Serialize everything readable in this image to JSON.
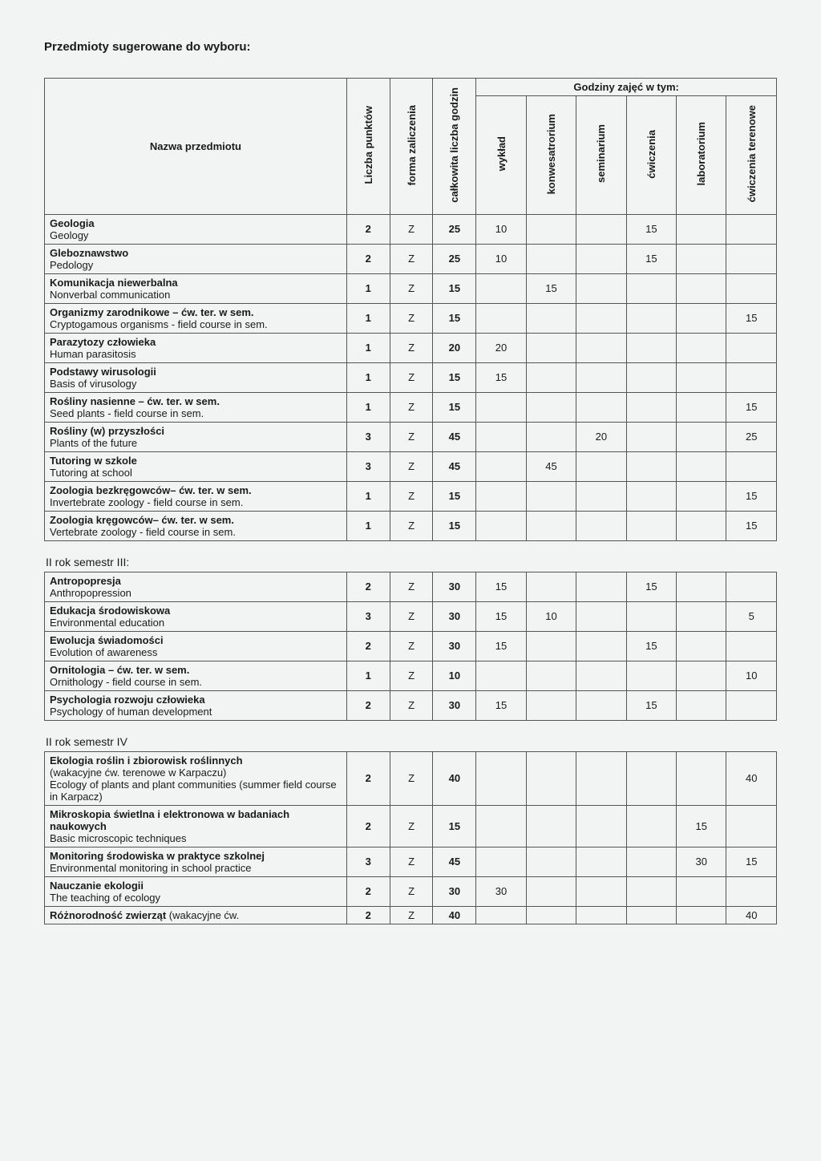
{
  "title": "Przedmioty sugerowane do wyboru:",
  "headers": {
    "name": "Nazwa przedmiotu",
    "points": "Liczba punktów",
    "form": "forma zaliczenia",
    "total": "całkowita liczba godzin",
    "hours_group": "Godziny zajęć w tym:",
    "h1": "wykład",
    "h2": "konwesatrorium",
    "h3": "seminarium",
    "h4": "ćwiczenia",
    "h5": "laboratorium",
    "h6": "ćwiczenia terenowe"
  },
  "section2_label": "II rok semestr III:",
  "section3_label": "II rok semestr IV",
  "rows1": [
    {
      "pl": "Geologia",
      "en": "Geology",
      "pts": "2",
      "form": "Z",
      "total": "25",
      "w": "10",
      "k": "",
      "s": "",
      "c": "15",
      "l": "",
      "t": ""
    },
    {
      "pl": "Gleboznawstwo",
      "en": "Pedology",
      "pts": "2",
      "form": "Z",
      "total": "25",
      "w": "10",
      "k": "",
      "s": "",
      "c": "15",
      "l": "",
      "t": ""
    },
    {
      "pl": "Komunikacja niewerbalna",
      "en": "Nonverbal communication",
      "pts": "1",
      "form": "Z",
      "total": "15",
      "w": "",
      "k": "15",
      "s": "",
      "c": "",
      "l": "",
      "t": ""
    },
    {
      "pl": "Organizmy zarodnikowe – ćw. ter. w sem.",
      "en": "Cryptogamous organisms -  field course in sem.",
      "pts": "1",
      "form": "Z",
      "total": "15",
      "w": "",
      "k": "",
      "s": "",
      "c": "",
      "l": "",
      "t": "15"
    },
    {
      "pl": "Parazytozy człowieka",
      "en": "Human parasitosis",
      "pts": "1",
      "form": "Z",
      "total": "20",
      "w": "20",
      "k": "",
      "s": "",
      "c": "",
      "l": "",
      "t": ""
    },
    {
      "pl": "Podstawy wirusologii",
      "en": "Basis of virusology",
      "pts": "1",
      "form": "Z",
      "total": "15",
      "w": "15",
      "k": "",
      "s": "",
      "c": "",
      "l": "",
      "t": ""
    },
    {
      "pl": "Rośliny nasienne – ćw. ter. w sem.",
      "en": "Seed plants - field course in sem.",
      "pts": "1",
      "form": "Z",
      "total": "15",
      "w": "",
      "k": "",
      "s": "",
      "c": "",
      "l": "",
      "t": "15"
    },
    {
      "pl": "Rośliny (w) przyszłości",
      "en": "Plants of the future",
      "pts": "3",
      "form": "Z",
      "total": "45",
      "w": "",
      "k": "",
      "s": "20",
      "c": "",
      "l": "",
      "t": "25"
    },
    {
      "pl": "Tutoring w szkole",
      "en": "Tutoring at school",
      "pts": "3",
      "form": "Z",
      "total": "45",
      "w": "",
      "k": "45",
      "s": "",
      "c": "",
      "l": "",
      "t": ""
    },
    {
      "pl": "Zoologia bezkręgowców– ćw. ter. w sem.",
      "en": "Invertebrate zoology -  field course in sem.",
      "pts": "1",
      "form": "Z",
      "total": "15",
      "w": "",
      "k": "",
      "s": "",
      "c": "",
      "l": "",
      "t": "15"
    },
    {
      "pl": "Zoologia kręgowców– ćw. ter. w sem.",
      "en": "Vertebrate zoology -  field course in sem.",
      "pts": "1",
      "form": "Z",
      "total": "15",
      "w": "",
      "k": "",
      "s": "",
      "c": "",
      "l": "",
      "t": "15"
    }
  ],
  "rows2": [
    {
      "pl": "Antropopresja",
      "en": "Anthropopression",
      "pts": "2",
      "form": "Z",
      "total": "30",
      "w": "15",
      "k": "",
      "s": "",
      "c": "15",
      "l": "",
      "t": ""
    },
    {
      "pl": "Edukacja środowiskowa",
      "en": "Environmental education",
      "pts": "3",
      "form": "Z",
      "total": "30",
      "w": "15",
      "k": "10",
      "s": "",
      "c": "",
      "l": "",
      "t": "5"
    },
    {
      "pl": "Ewolucja świadomości",
      "en": "Evolution of awareness",
      "pts": "2",
      "form": "Z",
      "total": "30",
      "w": "15",
      "k": "",
      "s": "",
      "c": "15",
      "l": "",
      "t": ""
    },
    {
      "pl": "Ornitologia – ćw. ter. w sem.",
      "en": "Ornithology - field course in sem.",
      "pts": "1",
      "form": "Z",
      "total": "10",
      "w": "",
      "k": "",
      "s": "",
      "c": "",
      "l": "",
      "t": "10"
    },
    {
      "pl": "Psychologia rozwoju człowieka",
      "en": "Psychology of human development",
      "pts": "2",
      "form": "Z",
      "total": "30",
      "w": "15",
      "k": "",
      "s": "",
      "c": "15",
      "l": "",
      "t": ""
    }
  ],
  "rows3": [
    {
      "pl": "Ekologia roślin i zbiorowisk roślinnych",
      "pl2": "(wakacyjne ćw. terenowe w Karpaczu)",
      "en": "Ecology of plants and plant communities (summer field course in Karpacz)",
      "pts": "2",
      "form": "Z",
      "total": "40",
      "w": "",
      "k": "",
      "s": "",
      "c": "",
      "l": "",
      "t": "40"
    },
    {
      "pl": "Mikroskopia świetlna i elektronowa w badaniach naukowych",
      "en": "Basic microscopic techniques",
      "pts": "2",
      "form": "Z",
      "total": "15",
      "w": "",
      "k": "",
      "s": "",
      "c": "",
      "l": "15",
      "t": ""
    },
    {
      "pl": "Monitoring środowiska w praktyce szkolnej",
      "en": "Environmental monitoring in school practice",
      "pts": "3",
      "form": "Z",
      "total": "45",
      "w": "",
      "k": "",
      "s": "",
      "c": "",
      "l": "30",
      "t": "15"
    },
    {
      "pl": "Nauczanie ekologii",
      "en": "The teaching of ecology",
      "pts": "2",
      "form": "Z",
      "total": "30",
      "w": "30",
      "k": "",
      "s": "",
      "c": "",
      "l": "",
      "t": ""
    },
    {
      "pl": "Różnorodność zwierząt",
      "pl_suffix": " (wakacyjne ćw.",
      "en": "",
      "pts": "2",
      "form": "Z",
      "total": "40",
      "w": "",
      "k": "",
      "s": "",
      "c": "",
      "l": "",
      "t": "40"
    }
  ]
}
